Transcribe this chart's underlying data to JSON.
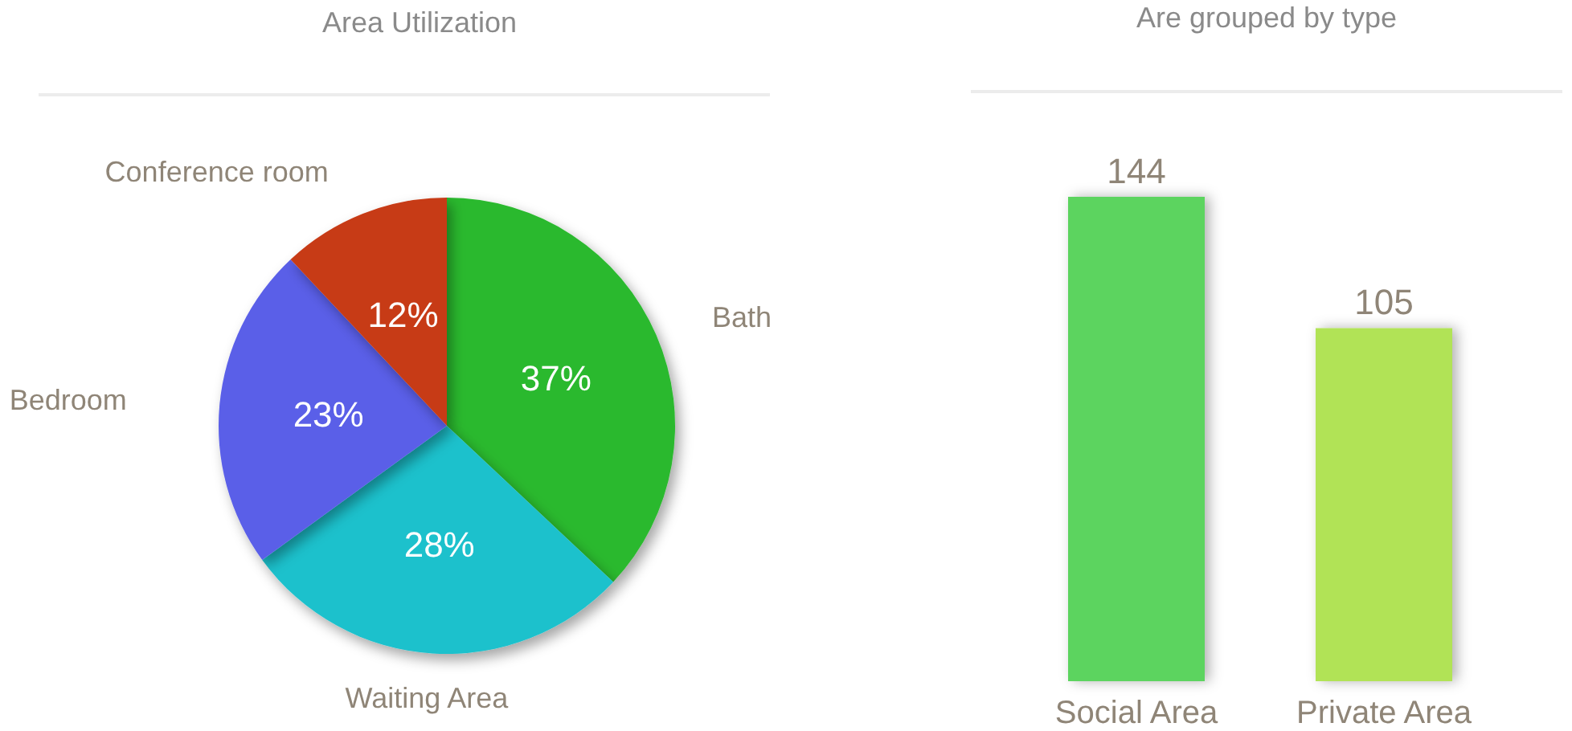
{
  "chart_data": [
    {
      "type": "pie",
      "title": "Area Utilization",
      "categories": [
        "Bath",
        "Waiting Area",
        "Bedroom",
        "Conference room"
      ],
      "values": [
        37,
        28,
        23,
        12
      ],
      "colors": [
        "#2bb92f",
        "#1dc1cc",
        "#5a5fe8",
        "#c73a15"
      ],
      "value_labels": [
        "37%",
        "28%",
        "23%",
        "12%"
      ]
    },
    {
      "type": "bar",
      "title": "Are grouped by type",
      "categories": [
        "Social Area",
        "Private Area"
      ],
      "values": [
        144,
        105
      ],
      "colors": [
        "#5cd45e",
        "#b1e356"
      ],
      "data_labels": true
    }
  ]
}
